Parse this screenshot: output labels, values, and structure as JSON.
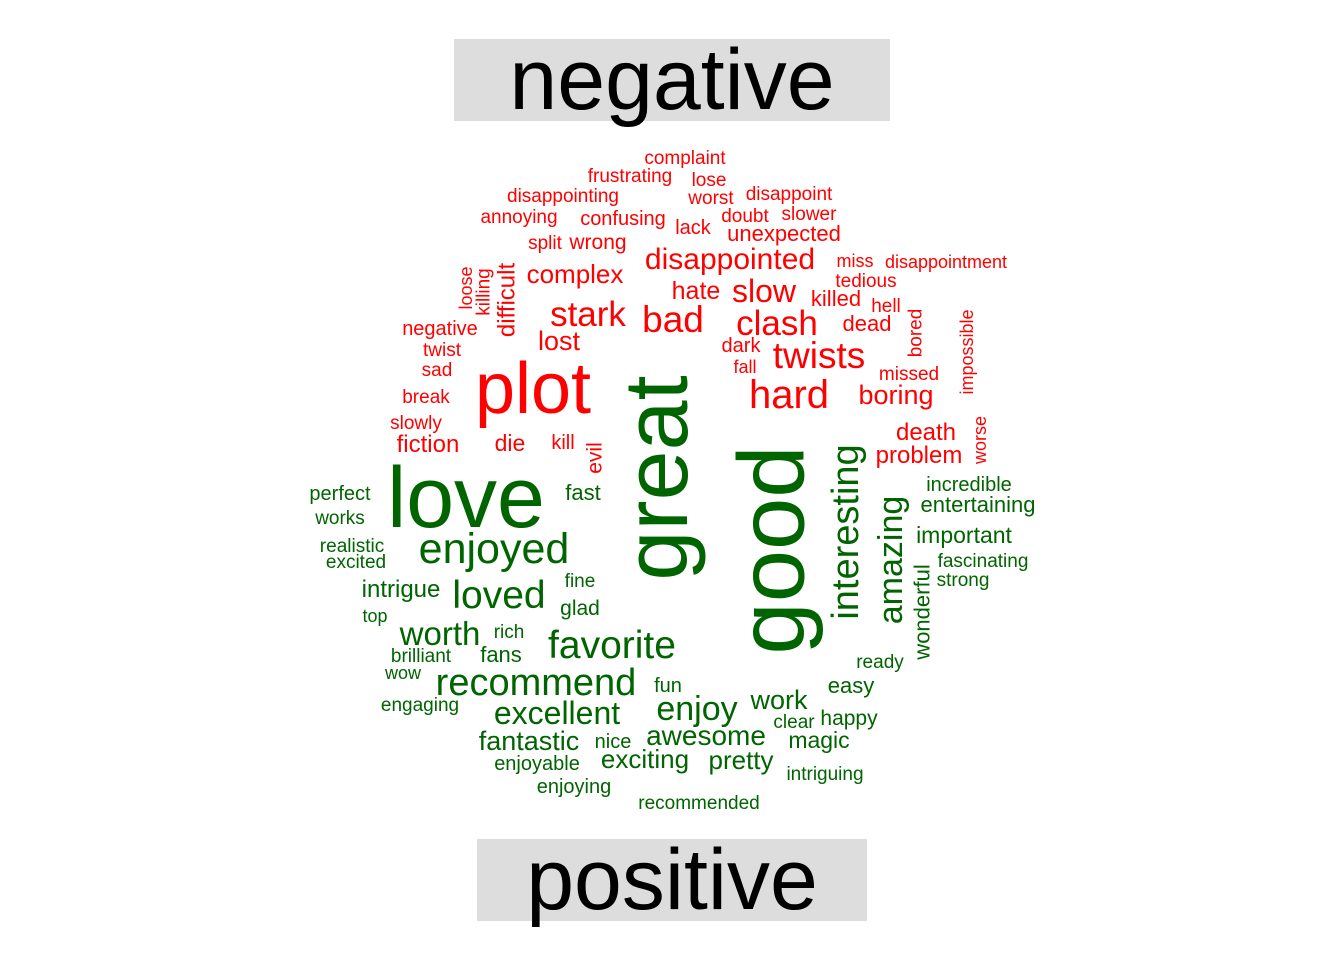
{
  "labels": {
    "top": "negative",
    "bottom": "positive"
  },
  "colors": {
    "negative": "#ff0000",
    "positive": "#006400",
    "label_bg": "#dddddd"
  },
  "words": [
    {
      "text": "complaint",
      "group": "negative"
    },
    {
      "text": "frustrating",
      "group": "negative"
    },
    {
      "text": "lose",
      "group": "negative"
    },
    {
      "text": "disappointing",
      "group": "negative"
    },
    {
      "text": "worst",
      "group": "negative"
    },
    {
      "text": "disappoint",
      "group": "negative"
    },
    {
      "text": "annoying",
      "group": "negative"
    },
    {
      "text": "confusing",
      "group": "negative"
    },
    {
      "text": "doubt",
      "group": "negative"
    },
    {
      "text": "slower",
      "group": "negative"
    },
    {
      "text": "lack",
      "group": "negative"
    },
    {
      "text": "unexpected",
      "group": "negative"
    },
    {
      "text": "split",
      "group": "negative"
    },
    {
      "text": "wrong",
      "group": "negative"
    },
    {
      "text": "disappointed",
      "group": "negative"
    },
    {
      "text": "miss",
      "group": "negative"
    },
    {
      "text": "disappointment",
      "group": "negative"
    },
    {
      "text": "complex",
      "group": "negative"
    },
    {
      "text": "tedious",
      "group": "negative"
    },
    {
      "text": "loose",
      "group": "negative"
    },
    {
      "text": "killing",
      "group": "negative"
    },
    {
      "text": "difficult",
      "group": "negative"
    },
    {
      "text": "hate",
      "group": "negative"
    },
    {
      "text": "slow",
      "group": "negative"
    },
    {
      "text": "killed",
      "group": "negative"
    },
    {
      "text": "hell",
      "group": "negative"
    },
    {
      "text": "stark",
      "group": "negative"
    },
    {
      "text": "bad",
      "group": "negative"
    },
    {
      "text": "clash",
      "group": "negative"
    },
    {
      "text": "dead",
      "group": "negative"
    },
    {
      "text": "bored",
      "group": "negative"
    },
    {
      "text": "impossible",
      "group": "negative"
    },
    {
      "text": "negative",
      "group": "negative"
    },
    {
      "text": "lost",
      "group": "negative"
    },
    {
      "text": "dark",
      "group": "negative"
    },
    {
      "text": "twist",
      "group": "negative"
    },
    {
      "text": "twists",
      "group": "negative"
    },
    {
      "text": "sad",
      "group": "negative"
    },
    {
      "text": "fall",
      "group": "negative"
    },
    {
      "text": "missed",
      "group": "negative"
    },
    {
      "text": "plot",
      "group": "negative"
    },
    {
      "text": "break",
      "group": "negative"
    },
    {
      "text": "hard",
      "group": "negative"
    },
    {
      "text": "boring",
      "group": "negative"
    },
    {
      "text": "slowly",
      "group": "negative"
    },
    {
      "text": "worse",
      "group": "negative"
    },
    {
      "text": "death",
      "group": "negative"
    },
    {
      "text": "fiction",
      "group": "negative"
    },
    {
      "text": "die",
      "group": "negative"
    },
    {
      "text": "kill",
      "group": "negative"
    },
    {
      "text": "evil",
      "group": "negative"
    },
    {
      "text": "problem",
      "group": "negative"
    },
    {
      "text": "love",
      "group": "positive"
    },
    {
      "text": "great",
      "group": "positive"
    },
    {
      "text": "good",
      "group": "positive"
    },
    {
      "text": "interesting",
      "group": "positive"
    },
    {
      "text": "amazing",
      "group": "positive"
    },
    {
      "text": "incredible",
      "group": "positive"
    },
    {
      "text": "perfect",
      "group": "positive"
    },
    {
      "text": "fast",
      "group": "positive"
    },
    {
      "text": "entertaining",
      "group": "positive"
    },
    {
      "text": "works",
      "group": "positive"
    },
    {
      "text": "important",
      "group": "positive"
    },
    {
      "text": "realistic",
      "group": "positive"
    },
    {
      "text": "enjoyed",
      "group": "positive"
    },
    {
      "text": "excited",
      "group": "positive"
    },
    {
      "text": "fascinating",
      "group": "positive"
    },
    {
      "text": "strong",
      "group": "positive"
    },
    {
      "text": "fine",
      "group": "positive"
    },
    {
      "text": "intrigue",
      "group": "positive"
    },
    {
      "text": "loved",
      "group": "positive"
    },
    {
      "text": "glad",
      "group": "positive"
    },
    {
      "text": "top",
      "group": "positive"
    },
    {
      "text": "wonderful",
      "group": "positive"
    },
    {
      "text": "worth",
      "group": "positive"
    },
    {
      "text": "rich",
      "group": "positive"
    },
    {
      "text": "favorite",
      "group": "positive"
    },
    {
      "text": "brilliant",
      "group": "positive"
    },
    {
      "text": "fans",
      "group": "positive"
    },
    {
      "text": "ready",
      "group": "positive"
    },
    {
      "text": "wow",
      "group": "positive"
    },
    {
      "text": "recommend",
      "group": "positive"
    },
    {
      "text": "fun",
      "group": "positive"
    },
    {
      "text": "easy",
      "group": "positive"
    },
    {
      "text": "work",
      "group": "positive"
    },
    {
      "text": "engaging",
      "group": "positive"
    },
    {
      "text": "excellent",
      "group": "positive"
    },
    {
      "text": "enjoy",
      "group": "positive"
    },
    {
      "text": "clear",
      "group": "positive"
    },
    {
      "text": "happy",
      "group": "positive"
    },
    {
      "text": "awesome",
      "group": "positive"
    },
    {
      "text": "fantastic",
      "group": "positive"
    },
    {
      "text": "nice",
      "group": "positive"
    },
    {
      "text": "magic",
      "group": "positive"
    },
    {
      "text": "enjoyable",
      "group": "positive"
    },
    {
      "text": "exciting",
      "group": "positive"
    },
    {
      "text": "pretty",
      "group": "positive"
    },
    {
      "text": "intriguing",
      "group": "positive"
    },
    {
      "text": "enjoying",
      "group": "positive"
    },
    {
      "text": "recommended",
      "group": "positive"
    }
  ]
}
